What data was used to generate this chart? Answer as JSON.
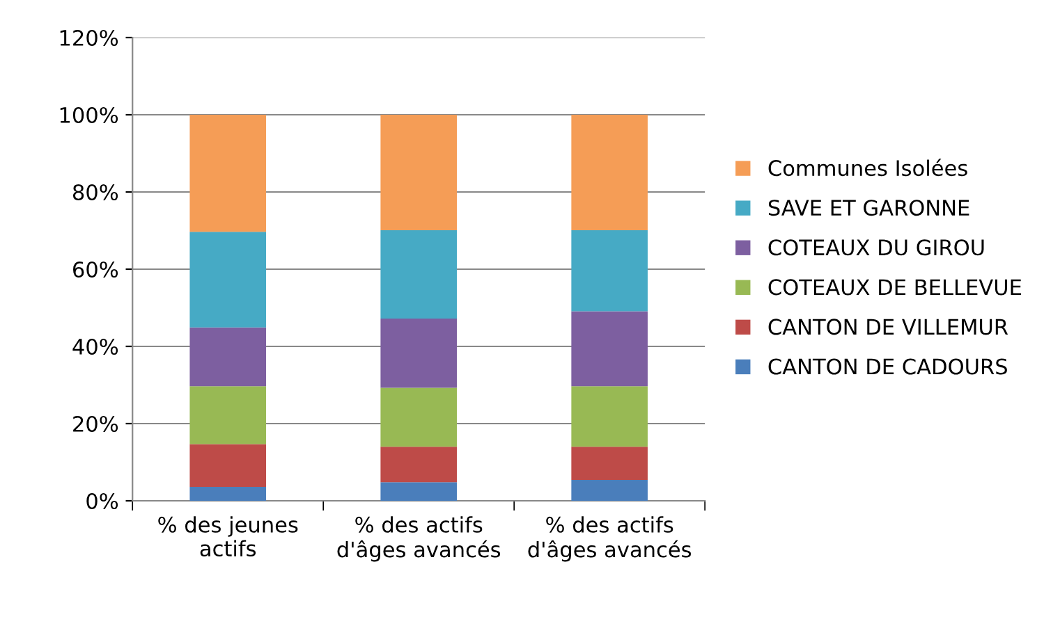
{
  "chart_data": {
    "type": "bar",
    "stacked": true,
    "categories": [
      "% des jeunes actifs",
      "% des actifs d'âges avancés",
      "% des actifs d'âges avancés"
    ],
    "series": [
      {
        "name": "CANTON DE CADOURS",
        "color": "#4a7ebb",
        "values": [
          3.6,
          4.8,
          5.4
        ]
      },
      {
        "name": "CANTON DE VILLEMUR",
        "color": "#be4b48",
        "values": [
          11.1,
          9.2,
          8.6
        ]
      },
      {
        "name": "COTEAUX DE BELLEVUE",
        "color": "#98b954",
        "values": [
          15.0,
          15.3,
          15.7
        ]
      },
      {
        "name": "COTEAUX DU GIROU",
        "color": "#7d5fa0",
        "values": [
          15.2,
          17.9,
          19.4
        ]
      },
      {
        "name": "SAVE ET GARONNE",
        "color": "#46aac5",
        "values": [
          24.8,
          22.9,
          21.0
        ]
      },
      {
        "name": "Communes Isolées",
        "color": "#f59d56",
        "values": [
          30.3,
          29.9,
          29.9
        ]
      }
    ],
    "ylim": [
      0,
      120
    ],
    "yticks": [
      {
        "value": 0,
        "label": "0%"
      },
      {
        "value": 20,
        "label": "20%"
      },
      {
        "value": 40,
        "label": "40%"
      },
      {
        "value": 60,
        "label": "60%"
      },
      {
        "value": 80,
        "label": "80%"
      },
      {
        "value": 100,
        "label": "100%"
      },
      {
        "value": 120,
        "label": "120%"
      }
    ],
    "grid": "y",
    "legend": "right"
  }
}
